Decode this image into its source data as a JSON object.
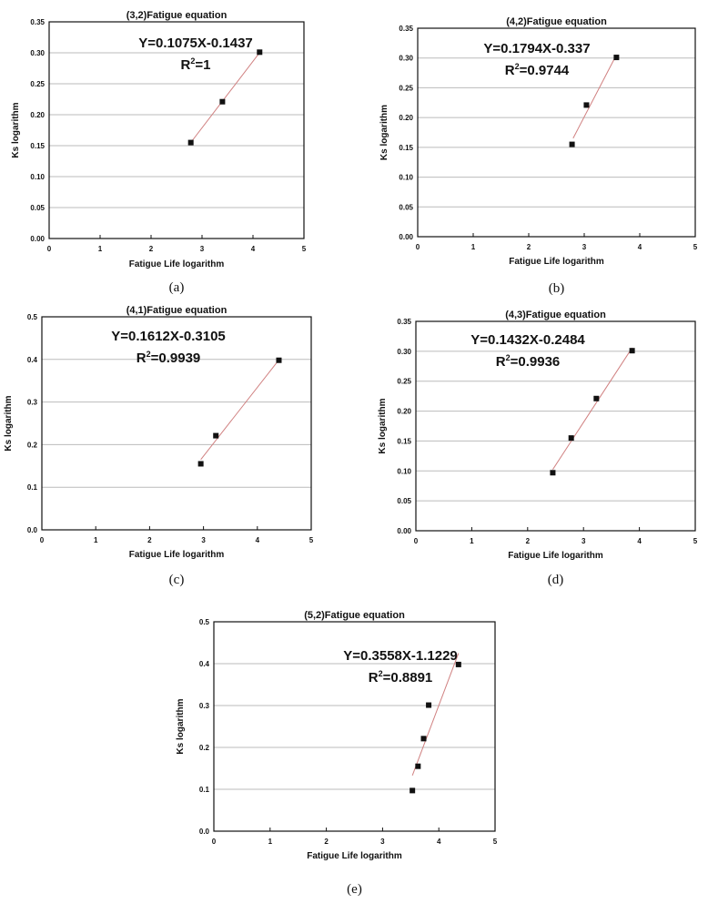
{
  "chart_data": [
    {
      "type": "scatter",
      "title": "(3,2)Fatigue equation",
      "xlabel": "Fatigue Life logarithm",
      "ylabel": "Ks logarithm",
      "xlim": [
        0,
        5
      ],
      "ylim": [
        0,
        0.35
      ],
      "xticks": [
        "0",
        "1",
        "2",
        "3",
        "4",
        "5"
      ],
      "yticks": [
        "0.00",
        "0.05",
        "0.10",
        "0.15",
        "0.20",
        "0.25",
        "0.30",
        "0.35"
      ],
      "grid": "horizontal",
      "points": [
        [
          2.78,
          0.155
        ],
        [
          3.4,
          0.221
        ],
        [
          4.13,
          0.301
        ]
      ],
      "fit": {
        "slope": 0.1075,
        "intercept": -0.1437,
        "x_range": [
          2.78,
          4.13
        ],
        "color": "#d08080"
      },
      "equation": "Y=0.1075X-0.1437",
      "r2_label": "R",
      "r2_value": "=1",
      "caption": "(a)"
    },
    {
      "type": "scatter",
      "title": "(4,2)Fatigue equation",
      "xlabel": "Fatigue Life logarithm",
      "ylabel": "Ks logarithm",
      "xlim": [
        0,
        5
      ],
      "ylim": [
        0,
        0.35
      ],
      "xticks": [
        "0",
        "1",
        "2",
        "3",
        "4",
        "5"
      ],
      "yticks": [
        "0.00",
        "0.05",
        "0.10",
        "0.15",
        "0.20",
        "0.25",
        "0.30",
        "0.35"
      ],
      "grid": "horizontal",
      "points": [
        [
          2.78,
          0.155
        ],
        [
          3.04,
          0.221
        ],
        [
          3.58,
          0.301
        ]
      ],
      "fit": {
        "slope": 0.1794,
        "intercept": -0.337,
        "x_range": [
          2.8,
          3.58
        ],
        "color": "#d08080"
      },
      "equation": "Y=0.1794X-0.337",
      "r2_label": "R",
      "r2_value": "=0.9744",
      "caption": "(b)"
    },
    {
      "type": "scatter",
      "title": "(4,1)Fatigue equation",
      "xlabel": "Fatigue Life logarithm",
      "ylabel": "Ks logarithm",
      "xlim": [
        0,
        5
      ],
      "ylim": [
        0,
        0.5
      ],
      "xticks": [
        "0",
        "1",
        "2",
        "3",
        "4",
        "5"
      ],
      "yticks": [
        "0.0",
        "0.1",
        "0.2",
        "0.3",
        "0.4",
        "0.5"
      ],
      "grid": "horizontal",
      "points": [
        [
          2.95,
          0.155
        ],
        [
          3.23,
          0.221
        ],
        [
          4.4,
          0.398
        ]
      ],
      "fit": {
        "slope": 0.1612,
        "intercept": -0.3105,
        "x_range": [
          2.95,
          4.4
        ],
        "color": "#d08080"
      },
      "equation": "Y=0.1612X-0.3105",
      "r2_label": "R",
      "r2_value": "=0.9939",
      "caption": "(c)"
    },
    {
      "type": "scatter",
      "title": "(4,3)Fatigue equation",
      "xlabel": "Fatigue Life logarithm",
      "ylabel": "Ks logarithm",
      "xlim": [
        0,
        5
      ],
      "ylim": [
        0,
        0.35
      ],
      "xticks": [
        "0",
        "1",
        "2",
        "3",
        "4",
        "5"
      ],
      "yticks": [
        "0.00",
        "0.05",
        "0.10",
        "0.15",
        "0.20",
        "0.25",
        "0.30",
        "0.35"
      ],
      "grid": "horizontal",
      "points": [
        [
          2.45,
          0.097
        ],
        [
          2.78,
          0.155
        ],
        [
          3.23,
          0.221
        ],
        [
          3.87,
          0.301
        ]
      ],
      "fit": {
        "slope": 0.1432,
        "intercept": -0.2484,
        "x_range": [
          2.45,
          3.87
        ],
        "color": "#d08080"
      },
      "equation": "Y=0.1432X-0.2484",
      "r2_label": "R",
      "r2_value": "=0.9936",
      "caption": "(d)"
    },
    {
      "type": "scatter",
      "title": "(5,2)Fatigue equation",
      "xlabel": "Fatigue Life logarithm",
      "ylabel": "Ks logarithm",
      "xlim": [
        0,
        5
      ],
      "ylim": [
        0,
        0.5
      ],
      "xticks": [
        "0",
        "1",
        "2",
        "3",
        "4",
        "5"
      ],
      "yticks": [
        "0.0",
        "0.1",
        "0.2",
        "0.3",
        "0.4",
        "0.5"
      ],
      "grid": "horizontal",
      "points": [
        [
          3.53,
          0.097
        ],
        [
          3.63,
          0.155
        ],
        [
          3.73,
          0.221
        ],
        [
          3.82,
          0.301
        ],
        [
          4.35,
          0.398
        ]
      ],
      "fit": {
        "slope": 0.3558,
        "intercept": -1.1229,
        "x_range": [
          3.53,
          4.35
        ],
        "color": "#d08080"
      },
      "equation": "Y=0.3558X-1.1229",
      "r2_label": "R",
      "r2_value": "=0.8891",
      "caption": "(e)"
    }
  ]
}
